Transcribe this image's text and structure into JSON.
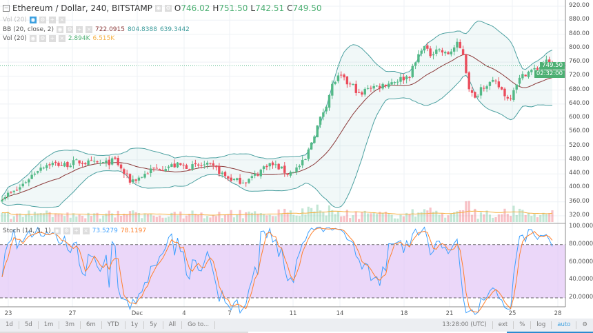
{
  "header": {
    "symbol": "Ethereum / Dollar, 240, BITSTAMP",
    "o_label": "O",
    "o": "746.02",
    "h_label": "H",
    "h": "751.50",
    "l_label": "L",
    "l": "742.51",
    "c_label": "C",
    "c": "749.50"
  },
  "indicators": {
    "vol_hidden": "Vol (20)",
    "bb": {
      "label": "BB (20, close, 2)",
      "mid": "722.0915",
      "upper": "804.8388",
      "lower": "639.3442"
    },
    "vol": {
      "label": "Vol (20)",
      "v1": "2.894K",
      "v2": "6.515K"
    },
    "stoch": {
      "label": "Stoch (14, 3, 1)",
      "k": "73.5279",
      "d": "78.1197"
    }
  },
  "price_axis": [
    "920.00",
    "880.00",
    "840.00",
    "800.00",
    "760.00",
    "720.00",
    "680.00",
    "640.00",
    "600.00",
    "560.00",
    "520.00",
    "480.00",
    "440.00",
    "400.00",
    "360.00",
    "320.00"
  ],
  "price_tag": "749.50",
  "countdown": "02:32:00",
  "stoch_axis": [
    "100.0000",
    "80.0000",
    "60.0000",
    "40.0000",
    "20.0000"
  ],
  "time_axis": [
    "23",
    "27",
    "Dec",
    "4",
    "7",
    "11",
    "14",
    "18",
    "21",
    "25",
    "28"
  ],
  "bottom": {
    "ranges": [
      "1d",
      "5d",
      "1m",
      "3m",
      "6m",
      "YTD",
      "1y",
      "5y",
      "All",
      "Go to..."
    ],
    "time": "13:28:00 (UTC)",
    "ext": "ext",
    "pct": "%",
    "log": "log",
    "auto": "auto"
  },
  "colors": {
    "up": "#53b987",
    "down": "#eb4d5c",
    "bb": "#4ba0a0",
    "mid": "#8b3a3a",
    "k": "#3ca0ff",
    "d": "#ff7f2a",
    "stochbg": "#e2c6f7"
  },
  "chart_data": {
    "type": "candlestick",
    "path": [
      [
        0,
        375
      ],
      [
        20,
        390
      ],
      [
        40,
        430
      ],
      [
        55,
        460
      ],
      [
        70,
        470
      ],
      [
        90,
        465
      ],
      [
        110,
        475
      ],
      [
        130,
        470
      ],
      [
        150,
        470
      ],
      [
        165,
        480
      ],
      [
        170,
        460
      ],
      [
        185,
        420
      ],
      [
        200,
        430
      ],
      [
        215,
        450
      ],
      [
        235,
        460
      ],
      [
        255,
        465
      ],
      [
        275,
        460
      ],
      [
        295,
        465
      ],
      [
        310,
        455
      ],
      [
        325,
        430
      ],
      [
        340,
        420
      ],
      [
        355,
        420
      ],
      [
        370,
        440
      ],
      [
        385,
        470
      ],
      [
        400,
        460
      ],
      [
        415,
        440
      ],
      [
        430,
        460
      ],
      [
        440,
        480
      ],
      [
        450,
        540
      ],
      [
        460,
        590
      ],
      [
        470,
        640
      ],
      [
        480,
        700
      ],
      [
        490,
        720
      ],
      [
        500,
        700
      ],
      [
        510,
        690
      ],
      [
        520,
        660
      ],
      [
        530,
        690
      ],
      [
        545,
        690
      ],
      [
        560,
        700
      ],
      [
        575,
        710
      ],
      [
        590,
        720
      ],
      [
        600,
        760
      ],
      [
        610,
        810
      ],
      [
        620,
        780
      ],
      [
        630,
        800
      ],
      [
        645,
        780
      ],
      [
        660,
        810
      ],
      [
        670,
        780
      ],
      [
        675,
        700
      ],
      [
        685,
        650
      ],
      [
        695,
        690
      ],
      [
        705,
        700
      ],
      [
        715,
        700
      ],
      [
        725,
        680
      ],
      [
        735,
        650
      ],
      [
        745,
        700
      ],
      [
        760,
        730
      ],
      [
        775,
        740
      ],
      [
        790,
        760
      ],
      [
        798,
        749.5
      ]
    ],
    "ylim": [
      310,
      930
    ],
    "last_close": 749.5
  }
}
